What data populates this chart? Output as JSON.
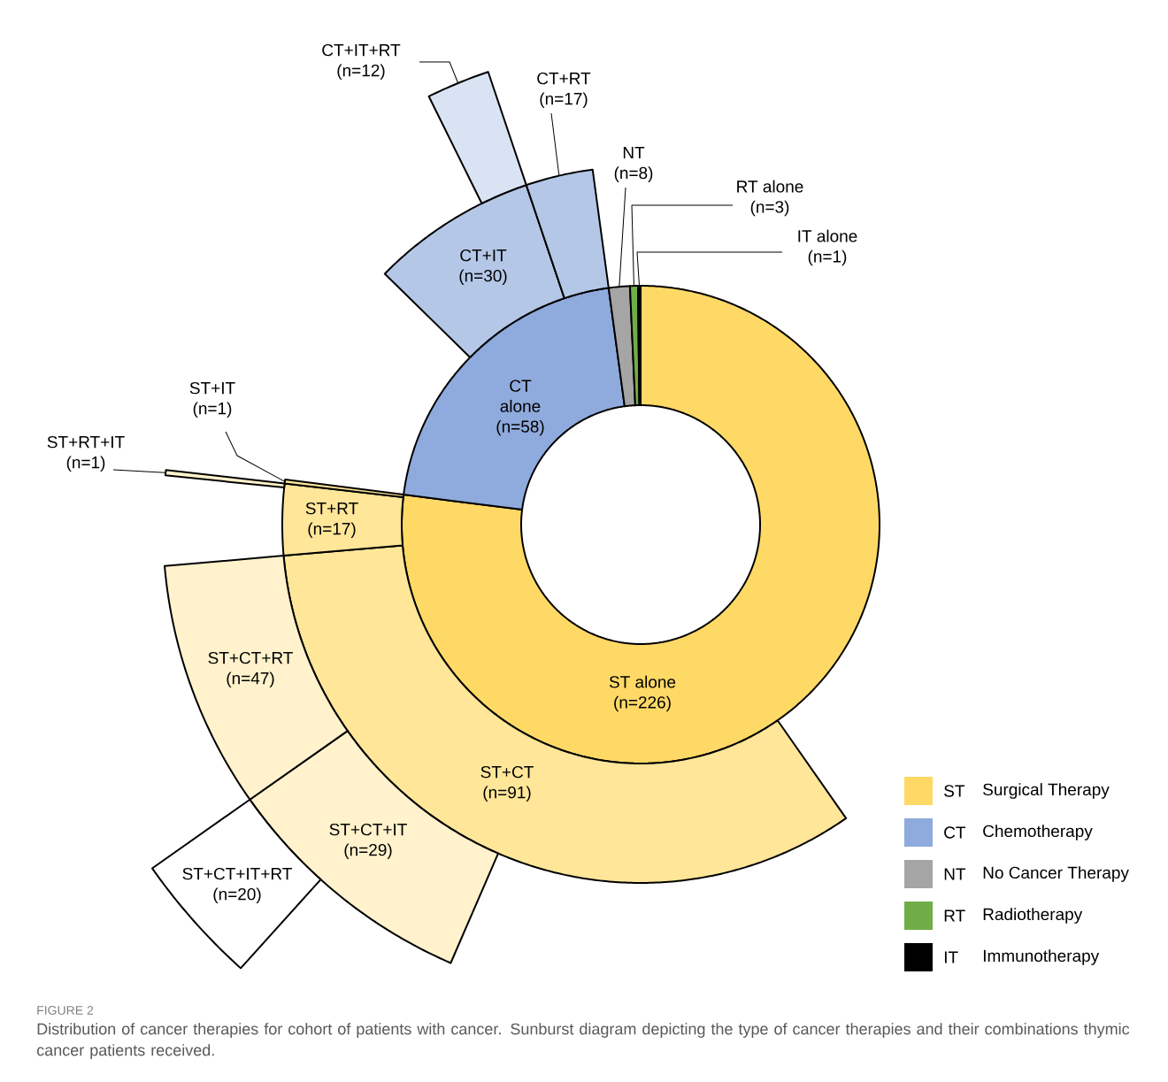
{
  "chart_data": {
    "type": "other",
    "categories": [
      "ST alone",
      "ST+CT",
      "ST+CT+IT",
      "ST+CT+IT+RT",
      "ST+CT+RT",
      "ST+RT",
      "ST+RT+IT",
      "ST+IT",
      "CT alone",
      "CT+IT",
      "CT+IT+RT",
      "CT+RT",
      "NT",
      "RT alone",
      "IT  alone"
    ],
    "series": [
      {
        "values": [
          226,
          null,
          null,
          null,
          null,
          null,
          null,
          null,
          58,
          null,
          null,
          null,
          8,
          3,
          1
        ],
        "colors": [
          "#FFD966",
          null,
          null,
          null,
          null,
          null,
          null,
          null,
          "#8FAADC",
          null,
          null,
          null,
          "#A5A5A5",
          "#70AD47",
          "#000000"
        ],
        "value_labels": [
          "(n=226)",
          null,
          null,
          null,
          null,
          null,
          null,
          null,
          "(n=58)",
          null,
          null,
          null,
          "(n=8)",
          "(n=3)",
          "(n=1)"
        ]
      },
      {
        "values": [
          null,
          91,
          null,
          null,
          null,
          17,
          null,
          1,
          null,
          30,
          null,
          17,
          null,
          null,
          null
        ],
        "colors": [
          null,
          "#FFE699",
          null,
          null,
          null,
          "#FFE699",
          null,
          "#FFE699",
          null,
          "#B4C7E7",
          null,
          "#B4C7E7",
          null,
          null,
          null
        ],
        "value_labels": [
          null,
          "(n=91)",
          null,
          null,
          null,
          "(n=17)",
          null,
          "(n=1)",
          null,
          "(n=30)",
          null,
          "(n=17)",
          null,
          null,
          null
        ]
      },
      {
        "values": [
          null,
          null,
          29,
          null,
          47,
          null,
          1,
          null,
          null,
          null,
          12,
          null,
          null,
          null,
          null
        ],
        "colors": [
          null,
          null,
          "#FFF2CC",
          null,
          "#FFF2CC",
          null,
          "#FFF2CC",
          null,
          null,
          null,
          "#DAE3F3",
          null,
          null,
          null,
          null
        ],
        "value_labels": [
          null,
          null,
          "(n=29)",
          null,
          "(n=47)",
          null,
          "(n=1)",
          null,
          null,
          null,
          "(n=12)",
          null,
          null,
          null,
          null
        ]
      },
      {
        "values": [
          null,
          null,
          null,
          20,
          null,
          null,
          null,
          null,
          null,
          null,
          null,
          null,
          null,
          null,
          null
        ],
        "colors": [
          null,
          null,
          null,
          "#FFFFFF",
          null,
          null,
          null,
          null,
          null,
          null,
          null,
          null,
          null,
          null,
          null
        ],
        "value_labels": [
          null,
          null,
          null,
          "(n=20)",
          null,
          null,
          null,
          null,
          null,
          null,
          null,
          null,
          null,
          null,
          null
        ]
      }
    ],
    "annotations": [
      "FIGURE 2",
      "Distribution of cancer therapies for cohort of patients with cancer. Sunburst diagram depicting the type of cancer therapies and their combinations thymic cancer patients received.",
      "ST",
      "Surgical Therapy",
      "CT",
      "Chemotherapy",
      "NT",
      "No Cancer Therapy",
      "RT",
      "Radiotherapy",
      "IT",
      "Immunotherapy"
    ]
  }
}
